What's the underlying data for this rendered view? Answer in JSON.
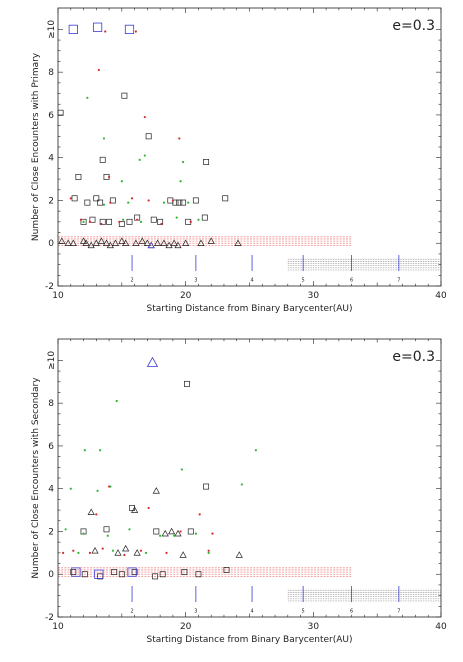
{
  "colors": {
    "black": "#222222",
    "red": "#d62a2a",
    "green": "#2fb52f",
    "blue": "#3b3bd6",
    "pink": "#f08a8a",
    "gray": "#999999"
  },
  "chart_data": [
    {
      "type": "scatter",
      "panel": "primary",
      "annotation": "e=0.3",
      "xlabel": "Starting Distance from Binary Barycenter(AU)",
      "ylabel": "Number of Close Encounters with Primary",
      "xlim": [
        10,
        40
      ],
      "ylim": [
        -2,
        11
      ],
      "x_ticks": [
        "10",
        "20",
        "30",
        "40"
      ],
      "y_ticks": [
        "-2",
        "0",
        "2",
        "4",
        "6",
        "8",
        "≥10"
      ],
      "resonance_markers": [
        {
          "label": "2",
          "x": 15.8
        },
        {
          "label": "3",
          "x": 20.8
        },
        {
          "label": "4",
          "x": 25.2
        },
        {
          "label": "5",
          "x": 29.2
        },
        {
          "label": "6",
          "x": 33.0
        },
        {
          "label": "7",
          "x": 36.7
        }
      ],
      "pink_band": {
        "x": [
          10,
          33
        ],
        "y": [
          -0.1,
          0.3
        ]
      },
      "gray_band": {
        "x": [
          28,
          40
        ],
        "y": [
          -1.25,
          -0.75
        ]
      },
      "series": [
        {
          "marker": "square",
          "color": "black",
          "points": [
            [
              10.2,
              6.1
            ],
            [
              11.3,
              2.1
            ],
            [
              11.6,
              3.1
            ],
            [
              12.3,
              1.9
            ],
            [
              12.0,
              1.0
            ],
            [
              12.7,
              1.1
            ],
            [
              13.0,
              2.1
            ],
            [
              13.3,
              1.9
            ],
            [
              13.5,
              3.9
            ],
            [
              13.8,
              3.1
            ],
            [
              14.3,
              2.0
            ],
            [
              15.2,
              6.9
            ],
            [
              15.6,
              1.0
            ],
            [
              16.2,
              1.2
            ],
            [
              17.1,
              5.0
            ],
            [
              17.5,
              1.1
            ],
            [
              18.0,
              1.0
            ],
            [
              18.8,
              2.0
            ],
            [
              19.2,
              1.9
            ],
            [
              19.5,
              1.9
            ],
            [
              19.8,
              1.9
            ],
            [
              20.2,
              1.0
            ],
            [
              20.8,
              2.0
            ],
            [
              21.6,
              3.8
            ],
            [
              21.5,
              1.2
            ],
            [
              23.1,
              2.1
            ],
            [
              13.5,
              1.0
            ],
            [
              14.0,
              1.0
            ],
            [
              15.0,
              0.9
            ]
          ]
        },
        {
          "marker": "square-large",
          "color": "blue",
          "points": [
            [
              11.2,
              10.0
            ],
            [
              13.1,
              10.1
            ],
            [
              15.6,
              10.0
            ]
          ]
        },
        {
          "marker": "triangle",
          "color": "black",
          "points": [
            [
              10.3,
              0.1
            ],
            [
              10.8,
              0.0
            ],
            [
              11.2,
              0.0
            ],
            [
              12.0,
              0.1
            ],
            [
              12.2,
              0.0
            ],
            [
              12.6,
              -0.1
            ],
            [
              13.0,
              0.0
            ],
            [
              13.4,
              0.1
            ],
            [
              13.8,
              0.0
            ],
            [
              14.1,
              -0.1
            ],
            [
              14.5,
              0.0
            ],
            [
              15.0,
              0.1
            ],
            [
              15.3,
              0.0
            ],
            [
              16.1,
              0.0
            ],
            [
              16.6,
              0.1
            ],
            [
              17.0,
              0.0
            ],
            [
              17.3,
              -0.1
            ],
            [
              17.8,
              0.0
            ],
            [
              18.3,
              0.0
            ],
            [
              18.7,
              -0.1
            ],
            [
              19.1,
              0.0
            ],
            [
              19.4,
              -0.1
            ],
            [
              20.0,
              0.0
            ],
            [
              21.2,
              0.0
            ],
            [
              22.0,
              0.1
            ],
            [
              24.1,
              0.0
            ]
          ]
        },
        {
          "marker": "triangle",
          "color": "blue",
          "points": [
            [
              17.3,
              -0.1
            ]
          ]
        },
        {
          "marker": "dot",
          "color": "red",
          "points": [
            [
              13.2,
              8.1
            ],
            [
              13.7,
              9.9
            ],
            [
              16.1,
              9.9
            ],
            [
              16.8,
              5.9
            ],
            [
              19.5,
              4.9
            ],
            [
              14.0,
              3.1
            ],
            [
              11.0,
              2.1
            ],
            [
              12.5,
              1.0
            ],
            [
              13.4,
              0.9
            ],
            [
              14.1,
              1.9
            ],
            [
              16.2,
              1.1
            ],
            [
              17.1,
              2.0
            ],
            [
              14.8,
              1.0
            ],
            [
              18.1,
              0.9
            ],
            [
              11.8,
              1.1
            ],
            [
              15.8,
              2.1
            ],
            [
              19.0,
              2.0
            ],
            [
              20.4,
              1.0
            ]
          ]
        },
        {
          "marker": "dot",
          "color": "green",
          "points": [
            [
              12.3,
              6.8
            ],
            [
              13.6,
              4.9
            ],
            [
              16.4,
              3.9
            ],
            [
              16.8,
              4.1
            ],
            [
              15.0,
              2.9
            ],
            [
              19.8,
              3.8
            ],
            [
              19.6,
              2.9
            ],
            [
              13.6,
              1.8
            ],
            [
              15.5,
              1.9
            ],
            [
              18.3,
              1.9
            ],
            [
              20.2,
              1.9
            ],
            [
              21.0,
              1.1
            ],
            [
              15.1,
              1.1
            ],
            [
              16.5,
              1.0
            ],
            [
              12.0,
              1.0
            ],
            [
              19.3,
              1.2
            ]
          ]
        }
      ]
    },
    {
      "type": "scatter",
      "panel": "secondary",
      "annotation": "e=0.3",
      "xlabel": "Starting Distance from Binary Barycenter(AU)",
      "ylabel": "Number of Close Encounters with Secondary",
      "xlim": [
        10,
        40
      ],
      "ylim": [
        -2,
        11
      ],
      "x_ticks": [
        "10",
        "20",
        "30",
        "40"
      ],
      "y_ticks": [
        "-2",
        "0",
        "2",
        "4",
        "6",
        "8",
        "≥10"
      ],
      "resonance_markers": [
        {
          "label": "2",
          "x": 15.8
        },
        {
          "label": "3",
          "x": 20.8
        },
        {
          "label": "4",
          "x": 25.2
        },
        {
          "label": "5",
          "x": 29.2
        },
        {
          "label": "6",
          "x": 33.0
        },
        {
          "label": "7",
          "x": 36.7
        }
      ],
      "pink_band": {
        "x": [
          10,
          33
        ],
        "y": [
          -0.1,
          0.3
        ]
      },
      "gray_band": {
        "x": [
          28,
          40
        ],
        "y": [
          -1.25,
          -0.75
        ]
      },
      "series": [
        {
          "marker": "square",
          "color": "black",
          "points": [
            [
              20.1,
              8.9
            ],
            [
              21.6,
              4.1
            ],
            [
              15.8,
              3.1
            ],
            [
              12.0,
              2.0
            ],
            [
              13.8,
              2.1
            ],
            [
              17.7,
              2.0
            ],
            [
              20.4,
              2.0
            ],
            [
              11.2,
              0.1
            ],
            [
              12.1,
              0.0
            ],
            [
              13.3,
              -0.1
            ],
            [
              14.4,
              0.1
            ],
            [
              15.0,
              0.0
            ],
            [
              16.0,
              0.1
            ],
            [
              17.6,
              -0.1
            ],
            [
              18.2,
              0.0
            ],
            [
              19.9,
              0.1
            ],
            [
              21.0,
              0.0
            ],
            [
              23.2,
              0.2
            ]
          ]
        },
        {
          "marker": "square-large",
          "color": "blue",
          "points": [
            [
              11.4,
              0.1
            ],
            [
              13.2,
              0.0
            ],
            [
              15.8,
              0.1
            ]
          ]
        },
        {
          "marker": "triangle",
          "color": "black",
          "points": [
            [
              12.6,
              2.9
            ],
            [
              16.0,
              3.0
            ],
            [
              17.7,
              3.9
            ],
            [
              18.4,
              1.9
            ],
            [
              18.9,
              2.0
            ],
            [
              19.4,
              1.9
            ],
            [
              12.9,
              1.1
            ],
            [
              14.7,
              1.0
            ],
            [
              15.3,
              1.2
            ],
            [
              24.2,
              0.9
            ],
            [
              16.2,
              1.0
            ],
            [
              19.8,
              0.9
            ]
          ]
        },
        {
          "marker": "triangle-large",
          "color": "blue",
          "points": [
            [
              17.4,
              9.9
            ]
          ]
        },
        {
          "marker": "dot",
          "color": "green",
          "points": [
            [
              14.6,
              8.1
            ],
            [
              12.1,
              5.8
            ],
            [
              13.3,
              5.8
            ],
            [
              25.5,
              5.8
            ],
            [
              19.7,
              4.9
            ],
            [
              24.4,
              4.2
            ],
            [
              11.0,
              4.0
            ],
            [
              13.1,
              3.9
            ],
            [
              14.1,
              4.1
            ],
            [
              10.6,
              2.1
            ],
            [
              12.0,
              1.9
            ],
            [
              13.9,
              1.8
            ],
            [
              15.6,
              2.1
            ],
            [
              18.0,
              1.8
            ],
            [
              19.1,
              1.8
            ],
            [
              20.8,
              1.9
            ],
            [
              11.6,
              1.0
            ],
            [
              14.3,
              1.1
            ],
            [
              16.9,
              1.0
            ],
            [
              21.8,
              1.0
            ]
          ]
        },
        {
          "marker": "dot",
          "color": "red",
          "points": [
            [
              17.1,
              3.1
            ],
            [
              13.0,
              2.8
            ],
            [
              14.0,
              4.1
            ],
            [
              11.2,
              1.1
            ],
            [
              12.5,
              1.0
            ],
            [
              13.5,
              1.2
            ],
            [
              15.2,
              0.9
            ],
            [
              16.5,
              1.1
            ],
            [
              18.5,
              1.0
            ],
            [
              19.6,
              2.0
            ],
            [
              21.1,
              2.8
            ],
            [
              22.1,
              1.9
            ],
            [
              21.8,
              1.1
            ],
            [
              10.4,
              1.0
            ]
          ]
        }
      ]
    }
  ]
}
